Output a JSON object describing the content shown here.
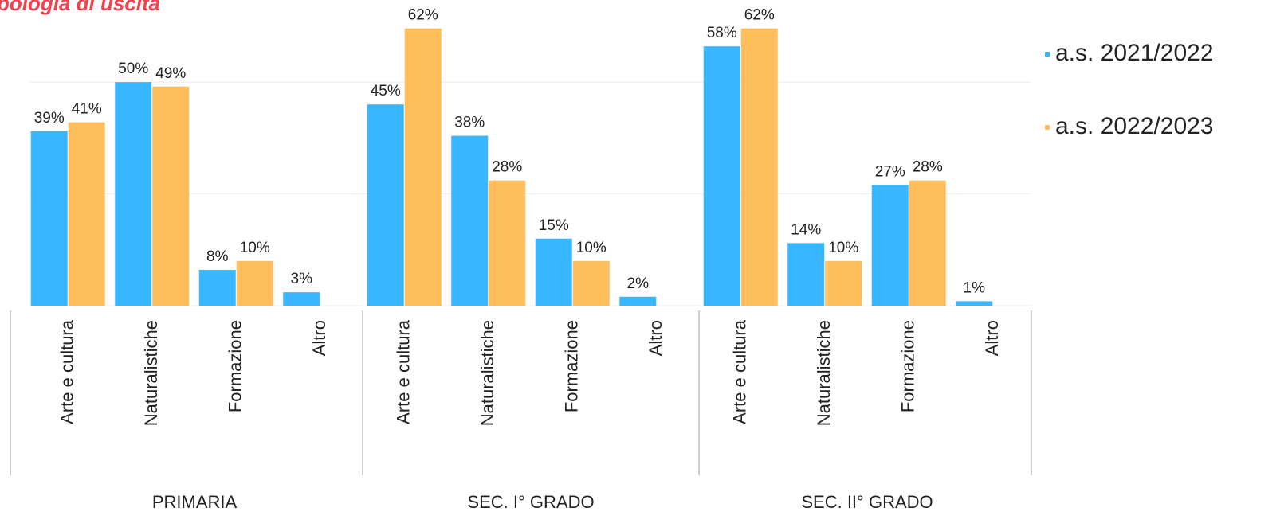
{
  "chart_data": {
    "type": "bar",
    "title": "pologia di uscita",
    "categories": [
      "Arte e cultura",
      "Naturalistiche",
      "Formazione",
      "Altro",
      "Arte e cultura",
      "Naturalistiche",
      "Formazione",
      "Altro",
      "Arte e cultura",
      "Naturalistiche",
      "Formazione",
      "Altro"
    ],
    "groups": [
      "PRIMARIA",
      "SEC. I° GRADO",
      "SEC. II° GRADO"
    ],
    "series": [
      {
        "name": "a.s. 2021/2022",
        "color": "#38b6ff",
        "values": [
          39,
          50,
          8,
          3,
          45,
          38,
          15,
          2,
          58,
          14,
          27,
          1
        ],
        "value_labels": [
          "39%",
          "50%",
          "8%",
          "3%",
          "45%",
          "38%",
          "15%",
          "2%",
          "58%",
          "14%",
          "27%",
          "1%"
        ]
      },
      {
        "name": "a.s. 2022/2023",
        "color": "#ffbe5c",
        "values": [
          41,
          49,
          10,
          null,
          62,
          28,
          10,
          null,
          62,
          10,
          28,
          null
        ],
        "value_labels": [
          "41%",
          "49%",
          "10%",
          null,
          "62%",
          "28%",
          "10%",
          null,
          "62%",
          "10%",
          "28%",
          null
        ]
      }
    ],
    "ylim": [
      0,
      68
    ],
    "yticks": [
      0,
      25,
      50
    ],
    "grid": true,
    "legend": "right"
  }
}
